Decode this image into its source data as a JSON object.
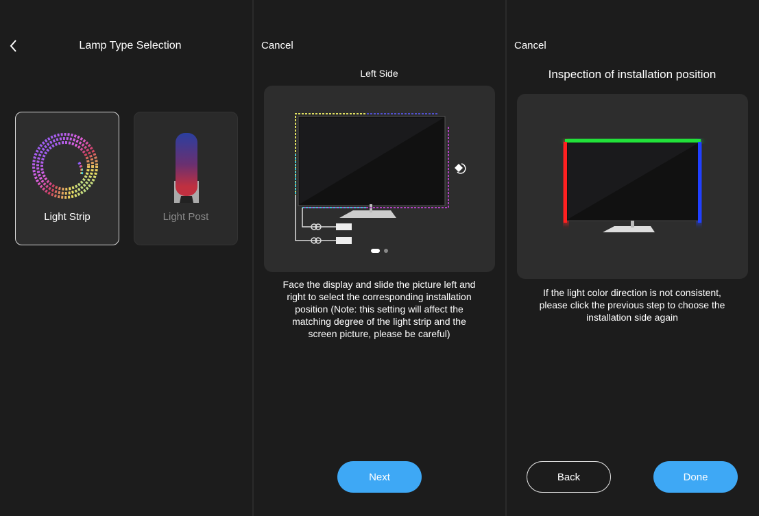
{
  "panel1": {
    "title": "Lamp Type Selection",
    "cards": [
      {
        "label": "Light Strip",
        "selected": true
      },
      {
        "label": "Light Post",
        "selected": false
      }
    ]
  },
  "panel2": {
    "cancel": "Cancel",
    "title": "Left Side",
    "description": "Face the display and slide the picture left and right to select the corresponding installation position (Note: this setting will affect the matching degree of the light strip and the screen picture, please be careful)",
    "page_indicator": {
      "current": 1,
      "total": 2
    },
    "next": "Next"
  },
  "panel3": {
    "cancel": "Cancel",
    "title": "Inspection of installation position",
    "description": "If the light color direction is not consistent, please click the previous step to choose the installation side again",
    "back": "Back",
    "done": "Done"
  },
  "colors": {
    "accent": "#3ea8f5",
    "top_strip": "#22e03a",
    "left_strip": "#ff2020",
    "right_strip": "#2040ff"
  }
}
